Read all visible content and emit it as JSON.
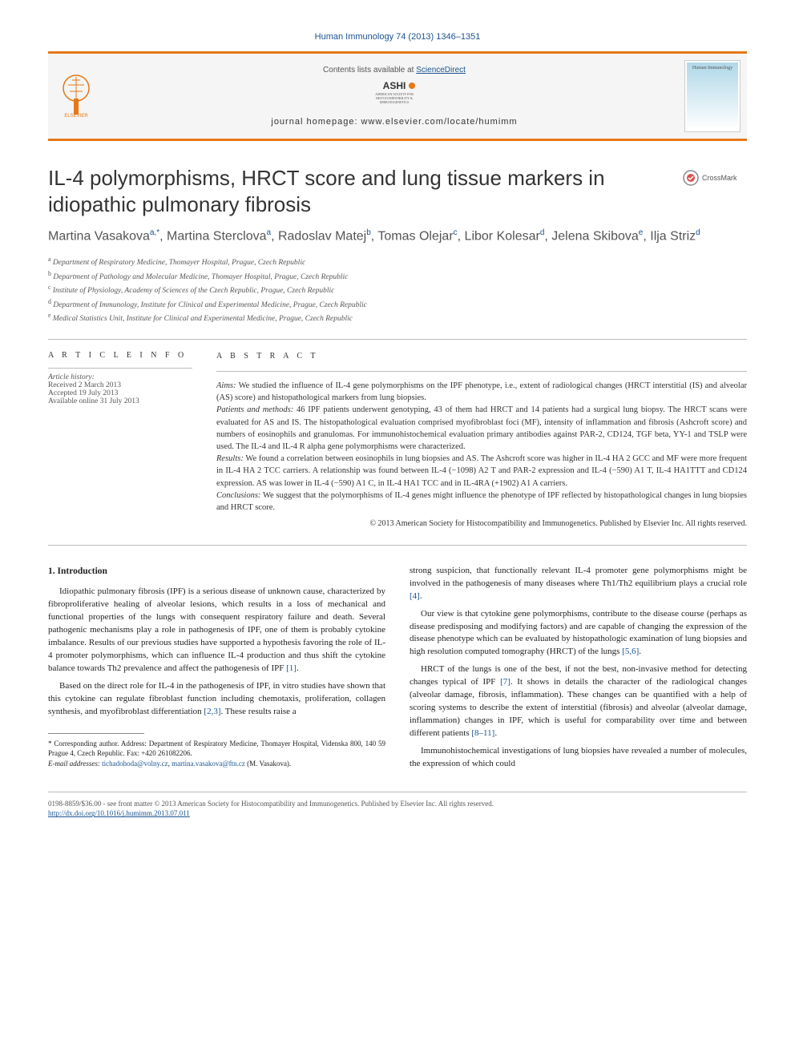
{
  "journalRef": "Human Immunology 74 (2013) 1346–1351",
  "banner": {
    "contents": "Contents lists available at",
    "contentsLink": "ScienceDirect",
    "ashiLines": [
      "AMERICAN SOCIETY FOR",
      "HISTOCOMPATIBILITY &",
      "IMMUNOGENETICS"
    ],
    "homepage": "journal homepage: www.elsevier.com/locate/humimm",
    "journalName": "Human Immunology"
  },
  "title": "IL-4 polymorphisms, HRCT score and lung tissue markers in idiopathic pulmonary fibrosis",
  "crossmark": "CrossMark",
  "authors": [
    {
      "name": "Martina Vasakova",
      "sup": "a,*"
    },
    {
      "name": "Martina Sterclova",
      "sup": "a"
    },
    {
      "name": "Radoslav Matej",
      "sup": "b"
    },
    {
      "name": "Tomas Olejar",
      "sup": "c"
    },
    {
      "name": "Libor Kolesar",
      "sup": "d"
    },
    {
      "name": "Jelena Skibova",
      "sup": "e"
    },
    {
      "name": "Ilja Striz",
      "sup": "d"
    }
  ],
  "affiliations": [
    {
      "sup": "a",
      "text": "Department of Respiratory Medicine, Thomayer Hospital, Prague, Czech Republic"
    },
    {
      "sup": "b",
      "text": "Department of Pathology and Molecular Medicine, Thomayer Hospital, Prague, Czech Republic"
    },
    {
      "sup": "c",
      "text": "Institute of Physiology, Academy of Sciences of the Czech Republic, Prague, Czech Republic"
    },
    {
      "sup": "d",
      "text": "Department of Immunology, Institute for Clinical and Experimental Medicine, Prague, Czech Republic"
    },
    {
      "sup": "e",
      "text": "Medical Statistics Unit, Institute for Clinical and Experimental Medicine, Prague, Czech Republic"
    }
  ],
  "articleInfo": {
    "head": "A R T I C L E   I N F O",
    "historyLabel": "Article history:",
    "received": "Received 2 March 2013",
    "accepted": "Accepted 19 July 2013",
    "online": "Available online 31 July 2013"
  },
  "abstract": {
    "head": "A B S T R A C T",
    "aims": "We studied the influence of IL-4 gene polymorphisms on the IPF phenotype, i.e., extent of radiological changes (HRCT interstitial (IS) and alveolar (AS) score) and histopathological markers from lung biopsies.",
    "patients": "46 IPF patients underwent genotyping, 43 of them had HRCT and 14 patients had a surgical lung biopsy. The HRCT scans were evaluated for AS and IS. The histopathological evaluation comprised myofibroblast foci (MF), intensity of inflammation and fibrosis (Ashcroft score) and numbers of eosinophils and granulomas. For immunohistochemical evaluation primary antibodies against PAR-2, CD124, TGF beta, YY-1 and TSLP were used. The IL-4 and IL-4 R alpha gene polymorphisms were characterized.",
    "results": "We found a correlation between eosinophils in lung biopsies and AS. The Ashcroft score was higher in IL-4 HA 2 GCC and MF were more frequent in IL-4 HA 2 TCC carriers. A relationship was found between IL-4 (−1098) A2 T and PAR-2 expression and IL-4 (−590) A1 T, IL-4 HA1TTT and CD124 expression. AS was lower in IL-4 (−590) A1 C, in IL-4 HA1 TCC and in IL-4RA (+1902) A1 A carriers.",
    "conclusions": "We suggest that the polymorphisms of IL-4 genes might influence the phenotype of IPF reflected by histopathological changes in lung biopsies and HRCT score.",
    "copyright": "© 2013 American Society for Histocompatibility and Immunogenetics. Published by Elsevier Inc. All rights reserved."
  },
  "body": {
    "sectionHead": "1. Introduction",
    "p1": "Idiopathic pulmonary fibrosis (IPF) is a serious disease of unknown cause, characterized by fibroproliferative healing of alveolar lesions, which results in a loss of mechanical and functional properties of the lungs with consequent respiratory failure and death. Several pathogenic mechanisms play a role in pathogenesis of IPF, one of them is probably cytokine imbalance. Results of our previous studies have supported a hypothesis favoring the role of IL-4 promoter polymorphisms, which can influence IL-4 production and thus shift the cytokine balance towards Th2 prevalence and affect the pathogenesis of IPF ",
    "p1ref": "[1]",
    "p2": "Based on the direct role for IL-4 in the pathogenesis of IPF, in vitro studies have shown that this cytokine can regulate fibroblast function including chemotaxis, proliferation, collagen synthesis, and myofibroblast differentiation ",
    "p2ref": "[2,3]",
    "p2b": ". These results raise a",
    "p3a": "strong suspicion, that functionally relevant IL-4 promoter gene polymorphisms might be involved in the pathogenesis of many diseases where Th1/Th2 equilibrium plays a crucial role ",
    "p3ref": "[4]",
    "p4": "Our view is that cytokine gene polymorphisms, contribute to the disease course (perhaps as disease predisposing and modifying factors) and are capable of changing the expression of the disease phenotype which can be evaluated by histopathologic examination of lung biopsies and high resolution computed tomography (HRCT) of the lungs ",
    "p4ref": "[5,6]",
    "p5": "HRCT of the lungs is one of the best, if not the best, non-invasive method for detecting changes typical of IPF ",
    "p5ref": "[7]",
    "p5b": ". It shows in details the character of the radiological changes (alveolar damage, fibrosis, inflammation). These changes can be quantified with a help of scoring systems to describe the extent of interstitial (fibrosis) and alveolar (alveolar damage, inflammation) changes in IPF, which is useful for comparability over time and between different patients ",
    "p5ref2": "[8–11]",
    "p6": "Immunohistochemical investigations of lung biopsies have revealed a number of molecules, the expression of which could"
  },
  "footnote": {
    "corr": "* Corresponding author. Address: Department of Respiratory Medicine, Thomayer Hospital, Videnska 800, 140 59 Prague 4, Czech Republic. Fax: +420 261082206.",
    "emailLabel": "E-mail addresses:",
    "email1": "tichadohoda@volny.cz",
    "email2": "martina.vasakova@ftn.cz",
    "emailSuffix": "(M. Vasakova)."
  },
  "footer": {
    "line1": "0198-8859/$36.00 - see front matter © 2013 American Society for Histocompatibility and Immunogenetics. Published by Elsevier Inc. All rights reserved.",
    "doi": "http://dx.doi.org/10.1016/j.humimm.2013.07.011"
  },
  "colors": {
    "accent": "#e67817",
    "link": "#1a5490"
  }
}
